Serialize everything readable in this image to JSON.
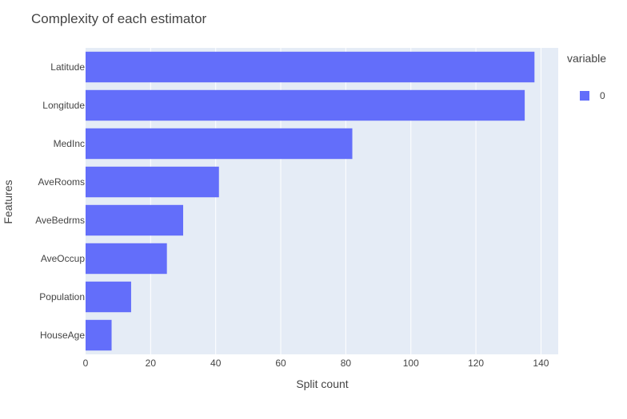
{
  "chart_data": {
    "type": "bar",
    "orientation": "horizontal",
    "title": "Complexity of each estimator",
    "xlabel": "Split count",
    "ylabel": "Features",
    "categories": [
      "HouseAge",
      "Population",
      "AveOccup",
      "AveBedrms",
      "AveRooms",
      "MedInc",
      "Longitude",
      "Latitude"
    ],
    "series": [
      {
        "name": "0",
        "values": [
          8,
          14,
          25,
          30,
          41,
          82,
          135,
          138
        ],
        "color": "#636efa"
      }
    ],
    "xlim": [
      0,
      145.3
    ],
    "xticks": [
      0,
      20,
      40,
      60,
      80,
      100,
      120,
      140
    ],
    "xtick_labels": [
      "0",
      "20",
      "40",
      "60",
      "80",
      "100",
      "120",
      "140"
    ],
    "legend": {
      "title": "variable",
      "placement": "top-right"
    },
    "grid": true,
    "plot_background": "#e5ecf6"
  }
}
